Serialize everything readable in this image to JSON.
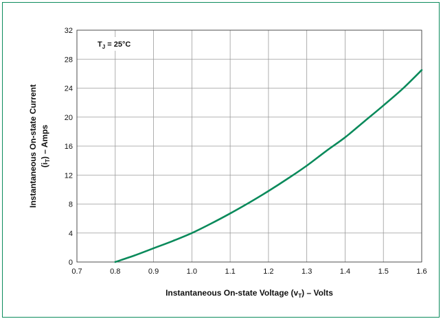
{
  "chart_data": {
    "type": "line",
    "annotation": {
      "main": "T",
      "sub": "J",
      "rest": " = 25°C"
    },
    "xlabel": {
      "pre": "Instantaneous On-state Voltage (v",
      "sub": "T",
      "post": ") – Volts"
    },
    "ylabel": {
      "line1": "Instantaneous On-state Current",
      "line2": {
        "pre": "(i",
        "sub": "T",
        "post": ") – Amps"
      }
    },
    "xlim": [
      0.7,
      1.6
    ],
    "ylim": [
      0,
      32
    ],
    "x_ticks": [
      "0.7",
      "0.8",
      "0.9",
      "1.0",
      "1.1",
      "1.2",
      "1.3",
      "1.4",
      "1.5",
      "1.6"
    ],
    "y_ticks": [
      "0",
      "4",
      "8",
      "12",
      "16",
      "20",
      "24",
      "28",
      "32"
    ],
    "grid": true,
    "series": [
      {
        "color": "#0a8a5b",
        "x": [
          0.8,
          0.85,
          0.9,
          0.95,
          1.0,
          1.05,
          1.1,
          1.15,
          1.2,
          1.25,
          1.3,
          1.35,
          1.4,
          1.45,
          1.5,
          1.55,
          1.6
        ],
        "y": [
          0,
          0.9,
          1.9,
          2.9,
          4.0,
          5.3,
          6.7,
          8.2,
          9.8,
          11.5,
          13.3,
          15.3,
          17.2,
          19.4,
          21.6,
          23.9,
          26.5
        ]
      }
    ]
  }
}
